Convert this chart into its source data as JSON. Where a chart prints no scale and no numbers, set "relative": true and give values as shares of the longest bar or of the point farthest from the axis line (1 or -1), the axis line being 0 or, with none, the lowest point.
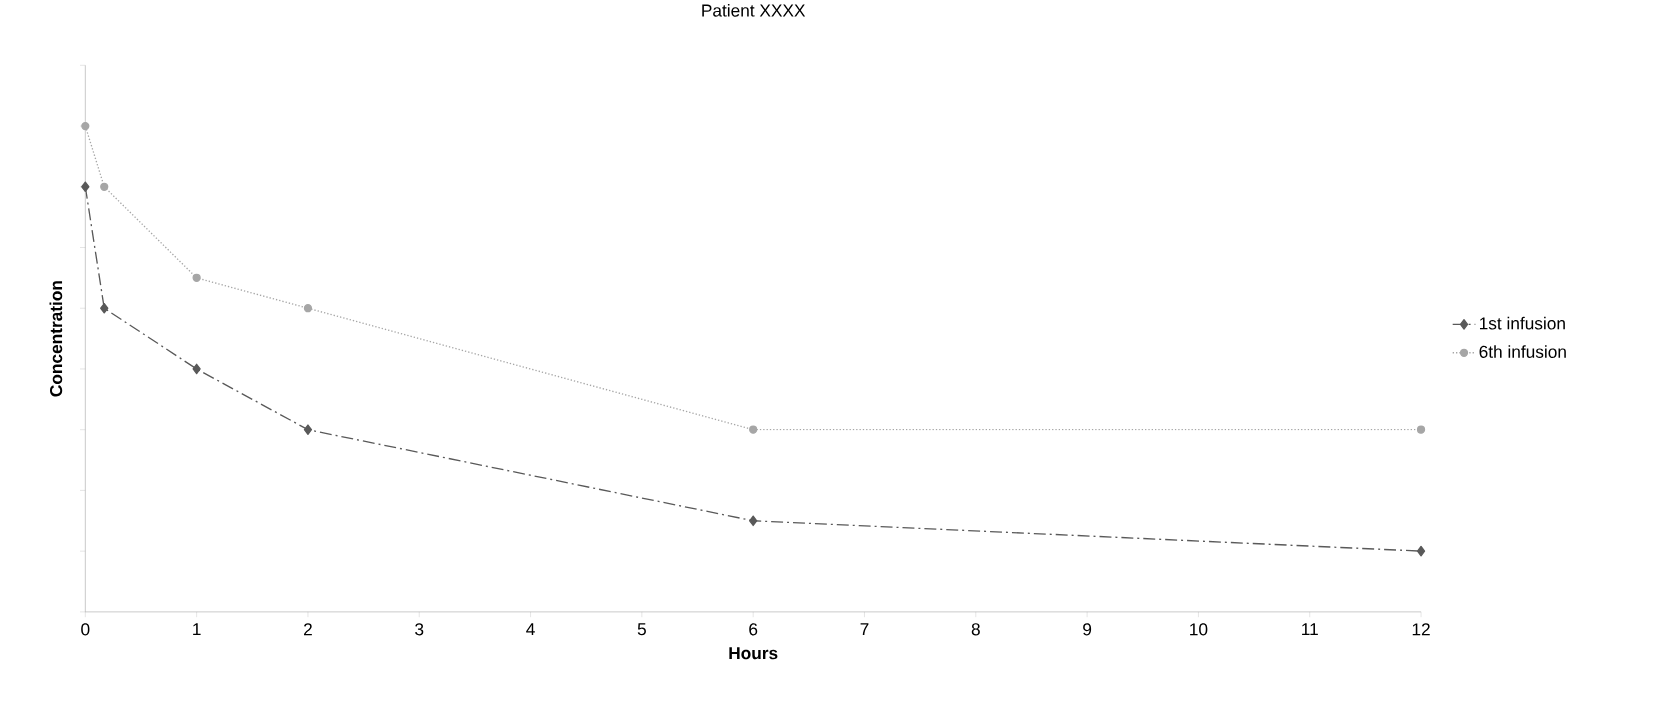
{
  "chart_data": {
    "type": "line",
    "title": "Patient XXXX",
    "xlabel": "Hours",
    "ylabel": "Concentration",
    "relative": true,
    "xlim": [
      0,
      12
    ],
    "xticks": [
      0,
      1,
      2,
      3,
      4,
      5,
      6,
      7,
      8,
      9,
      10,
      11,
      12
    ],
    "legend": "right",
    "grid": false,
    "series": [
      {
        "name": "1st infusion",
        "color": "#595959",
        "marker": "diamond",
        "line_style": "dashed",
        "x": [
          0,
          0.17,
          1,
          2,
          6,
          12
        ],
        "values": [
          0.875,
          0.625,
          0.5,
          0.375,
          0.1875,
          0.125
        ]
      },
      {
        "name": "6th infusion",
        "color": "#a6a6a6",
        "marker": "circle",
        "line_style": "dotted",
        "x": [
          0,
          0.17,
          1,
          2,
          6,
          12
        ],
        "values": [
          1,
          0.875,
          0.6875,
          0.625,
          0.375,
          0.375
        ]
      }
    ]
  }
}
